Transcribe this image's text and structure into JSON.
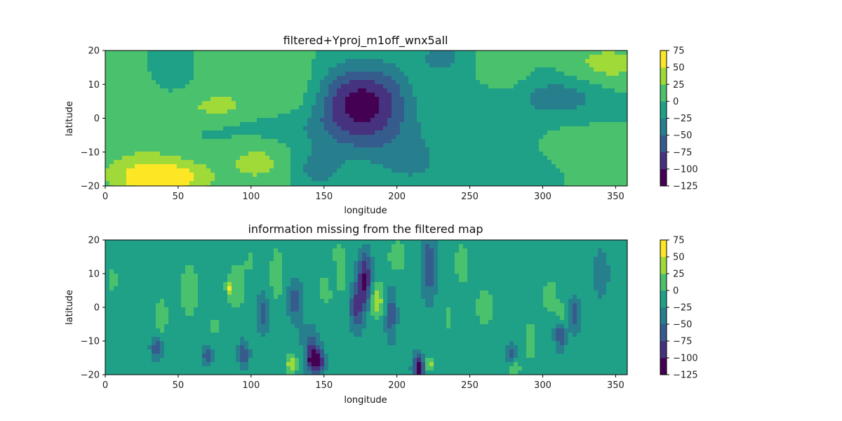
{
  "chart_data": [
    {
      "type": "heatmap",
      "title": "filtered+Yproj_m1off_wnx5all",
      "xlabel": "longitude",
      "ylabel": "latitude",
      "xlim": [
        0,
        358
      ],
      "ylim": [
        -20,
        20
      ],
      "x_ticks": [
        0,
        50,
        100,
        150,
        200,
        250,
        300,
        350
      ],
      "y_ticks": [
        -20,
        -10,
        0,
        10,
        20
      ],
      "background_level": 0,
      "features": [
        {
          "lon": 175,
          "lat": 6,
          "dlon": 34,
          "dlat": 10,
          "value": -100
        },
        {
          "lon": 177,
          "lat": -4,
          "dlon": 32,
          "dlat": 9,
          "value": -40
        },
        {
          "lon": 40,
          "lat": -18,
          "dlon": 30,
          "dlat": 5,
          "value": 58
        },
        {
          "lon": 30,
          "lat": -16,
          "dlon": 36,
          "dlat": 7,
          "value": 30
        },
        {
          "lon": 105,
          "lat": -13,
          "dlon": 24,
          "dlat": 7,
          "value": 32
        },
        {
          "lon": 135,
          "lat": 8,
          "dlon": 22,
          "dlat": 10,
          "value": 30
        },
        {
          "lon": 75,
          "lat": 3,
          "dlon": 30,
          "dlat": 5,
          "value": 28
        },
        {
          "lon": 90,
          "lat": 12,
          "dlon": 30,
          "dlat": 8,
          "value": 15
        },
        {
          "lon": 20,
          "lat": 2,
          "dlon": 22,
          "dlat": 14,
          "value": 14
        },
        {
          "lon": 270,
          "lat": 15,
          "dlon": 18,
          "dlat": 8,
          "value": 32
        },
        {
          "lon": 345,
          "lat": 16,
          "dlon": 28,
          "dlat": 6,
          "value": 35
        },
        {
          "lon": 312,
          "lat": 6,
          "dlon": 28,
          "dlat": 6,
          "value": -40
        },
        {
          "lon": 255,
          "lat": 4,
          "dlon": 30,
          "dlat": 14,
          "value": -18
        },
        {
          "lon": 230,
          "lat": 18,
          "dlon": 16,
          "dlat": 5,
          "value": -32
        },
        {
          "lon": 145,
          "lat": -15,
          "dlon": 18,
          "dlat": 6,
          "value": -35
        },
        {
          "lon": 210,
          "lat": -13,
          "dlon": 24,
          "dlat": 8,
          "value": -28
        },
        {
          "lon": 295,
          "lat": -18,
          "dlon": 22,
          "dlat": 6,
          "value": -18
        },
        {
          "lon": 325,
          "lat": -12,
          "dlon": 22,
          "dlat": 10,
          "value": 14
        },
        {
          "lon": 45,
          "lat": 12,
          "dlon": 22,
          "dlat": 8,
          "value": -10
        },
        {
          "lon": 220,
          "lat": 7,
          "dlon": 16,
          "dlat": 8,
          "value": 14
        },
        {
          "lon": 120,
          "lat": -3,
          "dlon": 50,
          "dlat": 5,
          "value": -15
        }
      ],
      "colorbar": {
        "levels": [
          -125,
          -100,
          -75,
          -50,
          -25,
          0,
          25,
          50,
          75
        ],
        "tick_labels": [
          "75",
          "50",
          "25",
          "0",
          "−25",
          "−50",
          "−75",
          "−100",
          "−125"
        ],
        "colors": [
          "#440154",
          "#46327e",
          "#365c8d",
          "#277f8e",
          "#1fa187",
          "#4ac16d",
          "#a0da39",
          "#fde725"
        ]
      }
    },
    {
      "type": "heatmap",
      "title": "information missing from the filtered map",
      "xlabel": "longitude",
      "ylabel": "latitude",
      "xlim": [
        0,
        358
      ],
      "ylim": [
        -20,
        20
      ],
      "x_ticks": [
        0,
        50,
        100,
        150,
        200,
        250,
        300,
        350
      ],
      "y_ticks": [
        -20,
        -10,
        0,
        10,
        20
      ],
      "background_level": -12,
      "features": [
        {
          "lon": 145,
          "lat": -16,
          "dlon": 5,
          "dlat": 3,
          "value": -110
        },
        {
          "lon": 140,
          "lat": -13,
          "dlon": 7,
          "dlat": 6,
          "value": -70
        },
        {
          "lon": 178,
          "lat": 8,
          "dlon": 5,
          "dlat": 8,
          "value": -95
        },
        {
          "lon": 172,
          "lat": 0,
          "dlon": 5,
          "dlat": 7,
          "value": -65
        },
        {
          "lon": 215,
          "lat": -18,
          "dlon": 4,
          "dlat": 4,
          "value": -100
        },
        {
          "lon": 222,
          "lat": 12,
          "dlon": 5,
          "dlat": 10,
          "value": -60
        },
        {
          "lon": 130,
          "lat": 2,
          "dlon": 5,
          "dlat": 6,
          "value": -55
        },
        {
          "lon": 108,
          "lat": -2,
          "dlon": 4,
          "dlat": 6,
          "value": -55
        },
        {
          "lon": 95,
          "lat": -14,
          "dlon": 4,
          "dlat": 4,
          "value": -55
        },
        {
          "lon": 70,
          "lat": -14,
          "dlon": 4,
          "dlat": 3,
          "value": -55
        },
        {
          "lon": 35,
          "lat": -12,
          "dlon": 4,
          "dlat": 4,
          "value": -55
        },
        {
          "lon": 312,
          "lat": -8,
          "dlon": 4,
          "dlat": 5,
          "value": -60
        },
        {
          "lon": 322,
          "lat": -2,
          "dlon": 4,
          "dlat": 5,
          "value": -60
        },
        {
          "lon": 278,
          "lat": -14,
          "dlon": 4,
          "dlat": 3,
          "value": -55
        },
        {
          "lon": 196,
          "lat": -2,
          "dlon": 4,
          "dlat": 8,
          "value": -55
        },
        {
          "lon": 155,
          "lat": 8,
          "dlon": 5,
          "dlat": 5,
          "value": -45
        },
        {
          "lon": 186,
          "lat": 2,
          "dlon": 5,
          "dlat": 5,
          "value": 60
        },
        {
          "lon": 152,
          "lat": 6,
          "dlon": 4,
          "dlat": 4,
          "value": 55
        },
        {
          "lon": 136,
          "lat": -14,
          "dlon": 3,
          "dlat": 3,
          "value": 55
        },
        {
          "lon": 128,
          "lat": -17,
          "dlon": 4,
          "dlat": 3,
          "value": 55
        },
        {
          "lon": 222,
          "lat": -17,
          "dlon": 3,
          "dlat": 2,
          "value": 55
        },
        {
          "lon": 85,
          "lat": 6,
          "dlon": 2,
          "dlat": 2,
          "value": 55
        },
        {
          "lon": 90,
          "lat": 6,
          "dlon": 6,
          "dlat": 7,
          "value": 30
        },
        {
          "lon": 160,
          "lat": 10,
          "dlon": 6,
          "dlat": 9,
          "value": 30
        },
        {
          "lon": 118,
          "lat": 10,
          "dlon": 5,
          "dlat": 8,
          "value": 28
        },
        {
          "lon": 58,
          "lat": 5,
          "dlon": 6,
          "dlat": 8,
          "value": 30
        },
        {
          "lon": 38,
          "lat": -3,
          "dlon": 5,
          "dlat": 6,
          "value": 26
        },
        {
          "lon": 200,
          "lat": 15,
          "dlon": 6,
          "dlat": 5,
          "value": 28
        },
        {
          "lon": 245,
          "lat": 13,
          "dlon": 5,
          "dlat": 6,
          "value": 28
        },
        {
          "lon": 305,
          "lat": 3,
          "dlon": 5,
          "dlat": 5,
          "value": 28
        },
        {
          "lon": 313,
          "lat": -3,
          "dlon": 4,
          "dlat": 4,
          "value": 35
        },
        {
          "lon": 292,
          "lat": -10,
          "dlon": 4,
          "dlat": 6,
          "value": 28
        },
        {
          "lon": 260,
          "lat": 0,
          "dlon": 7,
          "dlat": 8,
          "value": 20
        },
        {
          "lon": 280,
          "lat": -18,
          "dlon": 5,
          "dlat": 3,
          "value": 30
        },
        {
          "lon": 235,
          "lat": -3,
          "dlon": 5,
          "dlat": 6,
          "value": 15
        },
        {
          "lon": 5,
          "lat": 8,
          "dlon": 6,
          "dlat": 7,
          "value": 15
        },
        {
          "lon": 100,
          "lat": 14,
          "dlon": 5,
          "dlat": 5,
          "value": 15
        },
        {
          "lon": 75,
          "lat": -6,
          "dlon": 6,
          "dlat": 6,
          "value": 14
        },
        {
          "lon": 340,
          "lat": 10,
          "dlon": 6,
          "dlat": 8,
          "value": -30
        }
      ],
      "colorbar": {
        "levels": [
          -125,
          -100,
          -75,
          -50,
          -25,
          0,
          25,
          50,
          75
        ],
        "tick_labels": [
          "75",
          "50",
          "25",
          "0",
          "−25",
          "−50",
          "−75",
          "−100",
          "−125"
        ],
        "colors": [
          "#440154",
          "#46327e",
          "#365c8d",
          "#277f8e",
          "#1fa187",
          "#4ac16d",
          "#a0da39",
          "#fde725"
        ]
      }
    }
  ]
}
